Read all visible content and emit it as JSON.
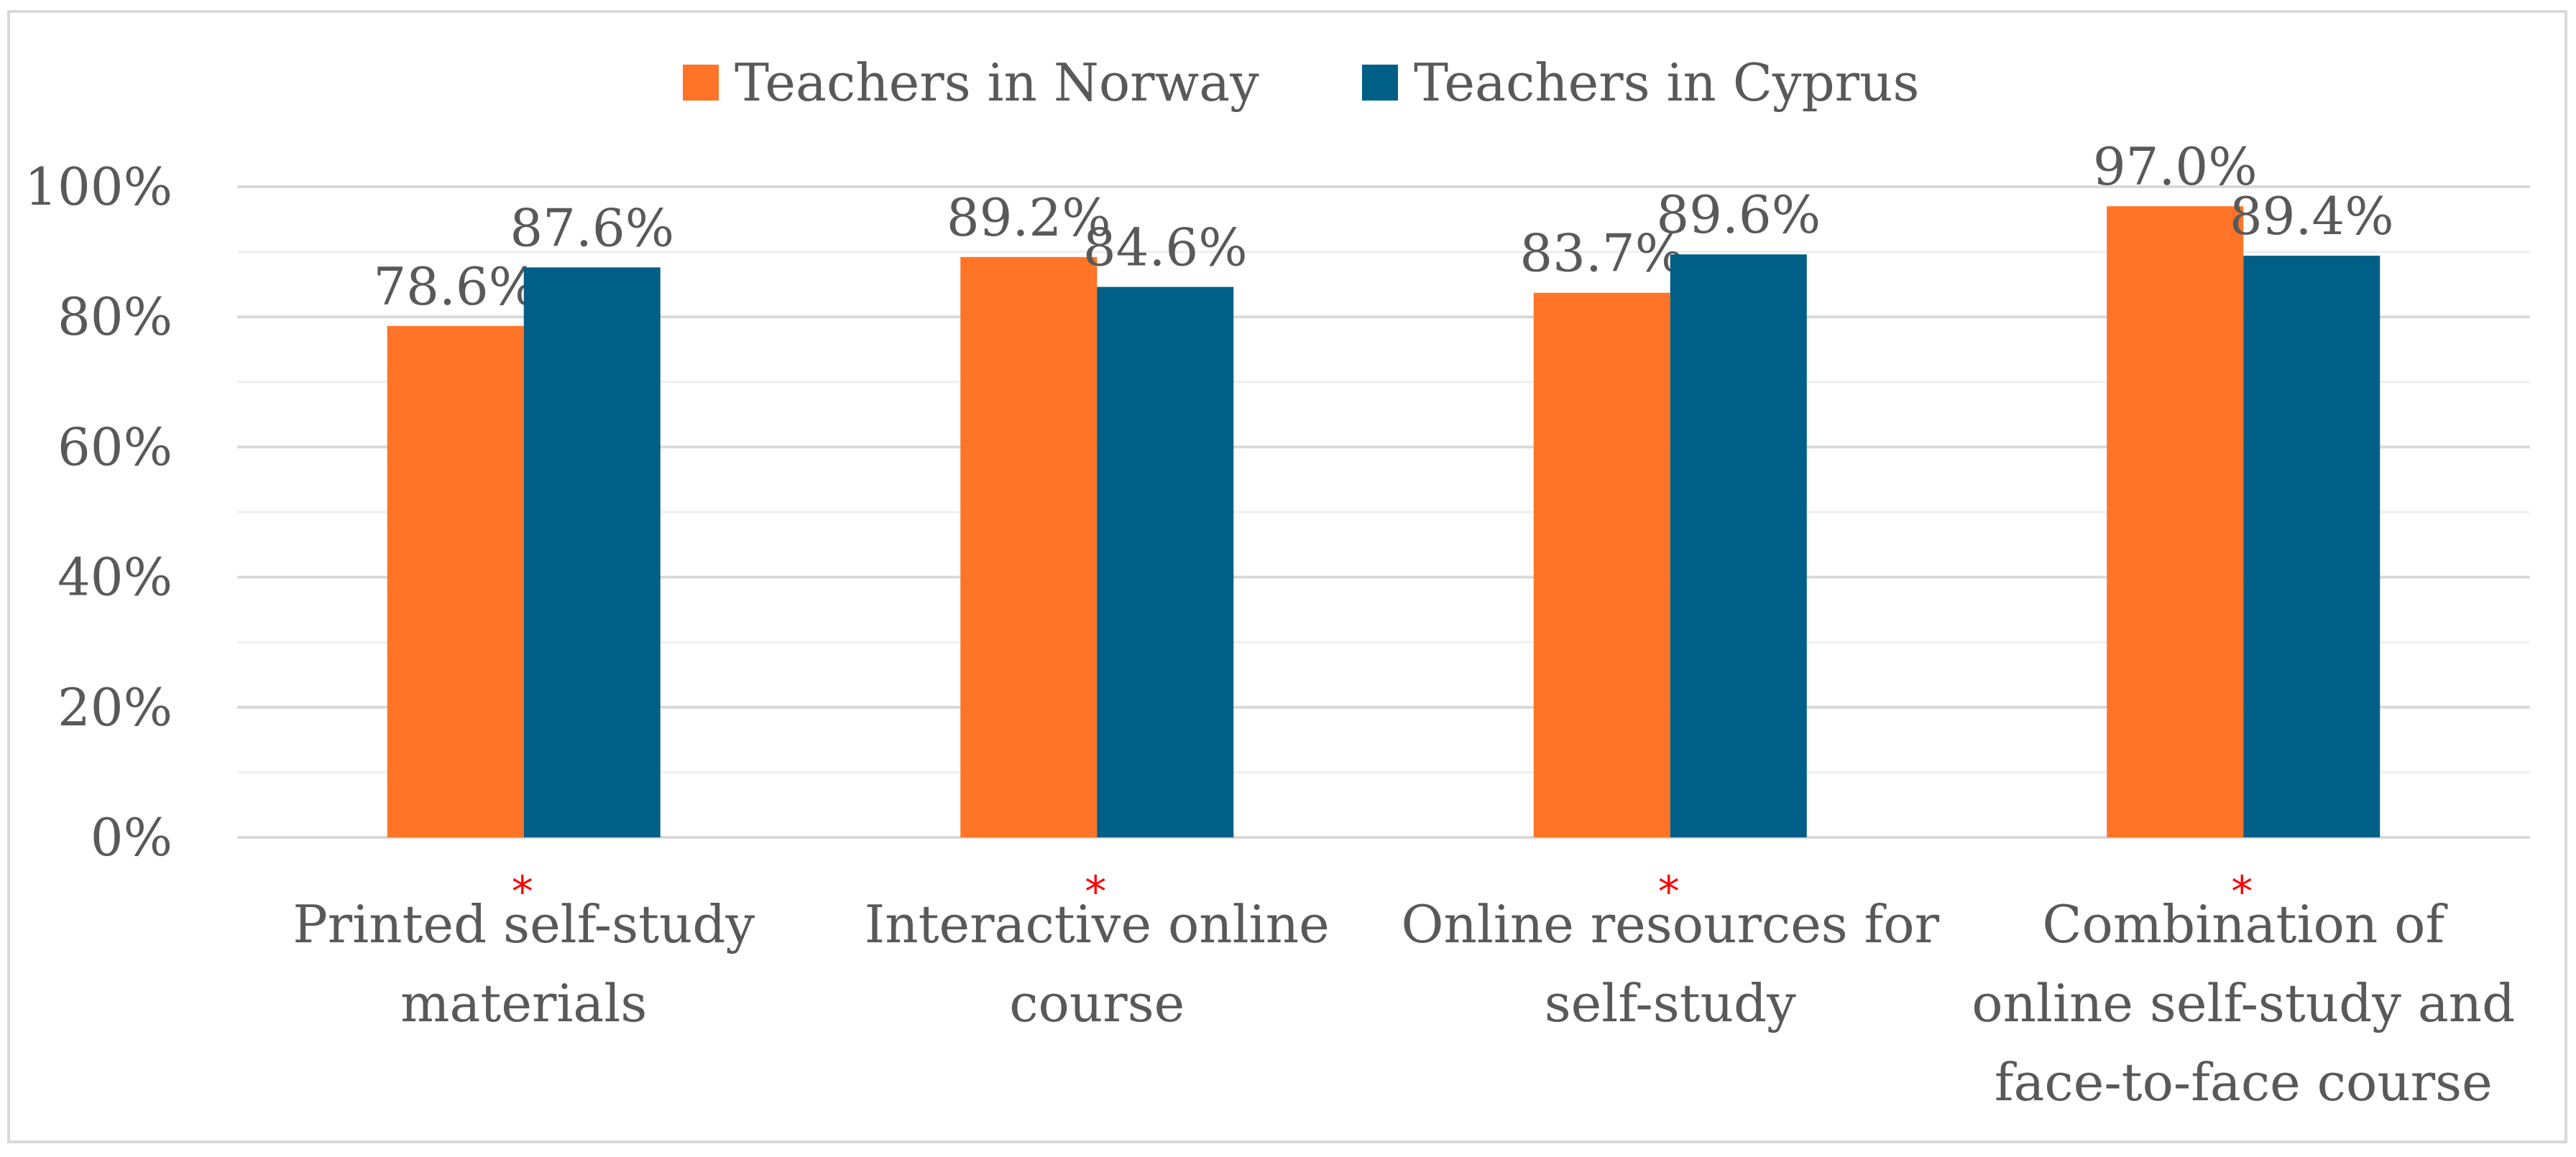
{
  "chart_data": {
    "type": "bar",
    "categories": [
      [
        "Printed self-study",
        "materials"
      ],
      [
        "Interactive online",
        "course"
      ],
      [
        "Online resources for",
        "self-study"
      ],
      [
        "Combination of",
        "online self-study and",
        "face-to-face course"
      ]
    ],
    "series": [
      {
        "name": "Teachers in Norway",
        "color": "#ff7427",
        "values": [
          78.6,
          89.2,
          83.7,
          97.0
        ],
        "labels": [
          "78.6%",
          "89.2%",
          "83.7%",
          "97.0%"
        ]
      },
      {
        "name": "Teachers in Cyprus",
        "color": "#005f86",
        "values": [
          87.6,
          84.6,
          89.6,
          89.4
        ],
        "labels": [
          "87.6%",
          "84.6%",
          "89.6%",
          "89.4%"
        ]
      }
    ],
    "significance_marks": [
      "*",
      "*",
      "*",
      "*"
    ],
    "significance_color": "#ff0000",
    "y_ticks": [
      "0%",
      "20%",
      "40%",
      "60%",
      "80%",
      "100%"
    ],
    "ylim": [
      0,
      100
    ],
    "y_major_step": 20,
    "y_minor_step": 10,
    "grid": true,
    "legend": "top-center",
    "title": "",
    "xlabel": "",
    "ylabel": ""
  }
}
